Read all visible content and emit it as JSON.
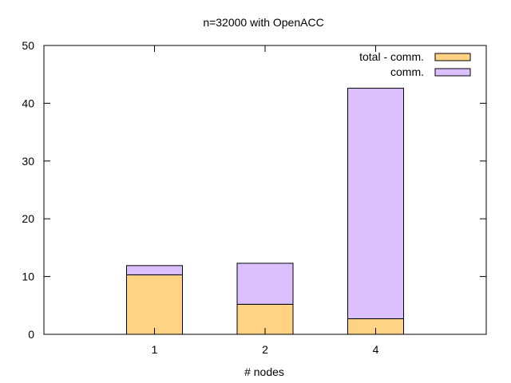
{
  "chart_data": {
    "type": "bar",
    "stacked": true,
    "title": "n=32000 with OpenACC",
    "xlabel": "# nodes",
    "ylabel": "",
    "categories": [
      "1",
      "2",
      "4"
    ],
    "ylim": [
      0,
      50
    ],
    "yticks": [
      0,
      10,
      20,
      30,
      40,
      50
    ],
    "grid": false,
    "legend_position": "top-right",
    "series": [
      {
        "name": "total - comm.",
        "values": [
          10.3,
          5.2,
          2.7
        ],
        "color": "#ffd383"
      },
      {
        "name": "comm.",
        "values": [
          1.6,
          7.1,
          39.9
        ],
        "color": "#dcbfff"
      }
    ]
  }
}
